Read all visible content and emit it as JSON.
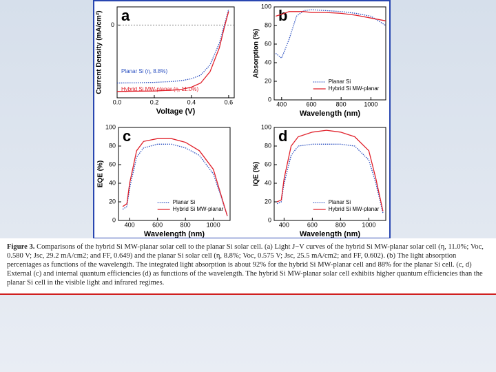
{
  "chart_data": [
    {
      "type": "line",
      "label": "a",
      "x_label": "Voltage (V)",
      "y_label": "Current Density (mA/cm²)",
      "xlim": [
        0,
        0.63
      ],
      "xticks": [
        {
          "value": 0,
          "label": "0.0"
        },
        0.2,
        0.4,
        0.6
      ],
      "ylim": [
        -32,
        8
      ],
      "yticks": [
        0
      ],
      "x": [
        0,
        0.1,
        0.2,
        0.3,
        0.35,
        0.4,
        0.45,
        0.5,
        0.55,
        0.58,
        0.6
      ],
      "series": [
        {
          "name": "Planar Si (η, 8.8%)",
          "color": "#2a4fc0",
          "style": "dotted",
          "values": [
            -25.5,
            -25.4,
            -25.2,
            -24.8,
            -24.4,
            -23.6,
            -22,
            -17.5,
            -8,
            1,
            7
          ]
        },
        {
          "name": "Hybrid Si MW-planar (η, 11.0%)",
          "color": "#e0202a",
          "style": "solid",
          "values": [
            -29.2,
            -29.1,
            -29,
            -28.6,
            -28.2,
            -27.3,
            -25.5,
            -20.5,
            -10,
            0,
            6
          ]
        }
      ]
    },
    {
      "type": "line",
      "label": "b",
      "x_label": "Wavelength (nm)",
      "y_label": "Absorption (%)",
      "xlim": [
        350,
        1100
      ],
      "xticks": [
        400,
        600,
        800,
        1000
      ],
      "ylim": [
        0,
        100
      ],
      "yticks": [
        0,
        20,
        40,
        60,
        80,
        100
      ],
      "x": [
        360,
        400,
        450,
        500,
        550,
        600,
        700,
        800,
        900,
        1000,
        1100
      ],
      "series": [
        {
          "name": "Planar Si",
          "color": "#2a4fc0",
          "style": "dotted",
          "values": [
            50,
            45,
            65,
            90,
            96,
            97,
            96,
            95,
            93,
            90,
            80
          ]
        },
        {
          "name": "Hybrid Si MW-planar",
          "color": "#e0202a",
          "style": "solid",
          "values": [
            90,
            92,
            95,
            95,
            95,
            94,
            94,
            93,
            91,
            88,
            85
          ]
        }
      ]
    },
    {
      "type": "line",
      "label": "c",
      "x_label": "Wavelength (nm)",
      "y_label": "EQE (%)",
      "xlim": [
        320,
        1120
      ],
      "xticks": [
        400,
        600,
        800,
        1000
      ],
      "ylim": [
        0,
        100
      ],
      "yticks": [
        0,
        20,
        40,
        60,
        80,
        100
      ],
      "x": [
        350,
        380,
        400,
        450,
        500,
        600,
        700,
        800,
        900,
        1000,
        1050,
        1100
      ],
      "series": [
        {
          "name": "Planar Si",
          "color": "#2a4fc0",
          "style": "dotted",
          "values": [
            12,
            15,
            35,
            68,
            78,
            82,
            82,
            78,
            70,
            50,
            28,
            5
          ]
        },
        {
          "name": "Hybrid Si MW-planar",
          "color": "#e0202a",
          "style": "solid",
          "values": [
            15,
            18,
            40,
            75,
            85,
            88,
            88,
            84,
            75,
            55,
            30,
            5
          ]
        }
      ]
    },
    {
      "type": "line",
      "label": "d",
      "x_label": "Wavelength (nm)",
      "y_label": "IQE (%)",
      "xlim": [
        330,
        1120
      ],
      "xticks": [
        400,
        600,
        800,
        1000
      ],
      "ylim": [
        0,
        100
      ],
      "yticks": [
        0,
        20,
        40,
        60,
        80,
        100
      ],
      "x": [
        350,
        380,
        400,
        450,
        500,
        600,
        700,
        800,
        900,
        1000,
        1050,
        1100
      ],
      "series": [
        {
          "name": "Planar Si",
          "color": "#2a4fc0",
          "style": "dotted",
          "values": [
            18,
            20,
            40,
            70,
            80,
            82,
            82,
            82,
            80,
            65,
            40,
            8
          ]
        },
        {
          "name": "Hybrid Si MW-planar",
          "color": "#e0202a",
          "style": "solid",
          "values": [
            20,
            22,
            45,
            80,
            90,
            95,
            97,
            95,
            90,
            75,
            45,
            10
          ]
        }
      ]
    }
  ],
  "caption": {
    "label": "Figure 3.",
    "text": "Comparisons of the hybrid Si MW-planar solar cell to the planar Si solar cell. (a) Light J−V curves of the hybrid Si MW-planar solar cell (η, 11.0%; Voc, 0.580 V; Jsc, 29.2 mA/cm2; and FF, 0.649) and the planar Si solar cell (η, 8.8%; Voc, 0.575 V; Jsc, 25.5 mA/cm2; and FF, 0.602). (b) The light absorption percentages as functions of the wavelength. The integrated light absorption is about 92% for the hybrid Si MW-planar cell and 88% for the planar Si cell. (c, d) External (c) and internal quantum efficiencies (d) as functions of the wavelength. The hybrid Si MW-planar solar cell exhibits higher quantum efficiencies than the planar Si cell in the visible light and infrared regimes."
  }
}
